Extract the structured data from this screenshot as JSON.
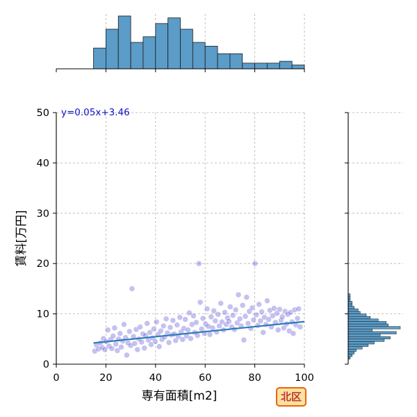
{
  "colors": {
    "hist_fill": "#5b9cc8",
    "hist_edge": "#1a1a1a",
    "scatter_point": "#4b3fd0",
    "regression_line": "#2b7bb9",
    "equation_text": "#1010c8",
    "grid": "#b0b0b0",
    "badge_border": "#e8640a",
    "badge_fill": "#fde2a4",
    "badge_text": "#c0392b"
  },
  "badge": {
    "label": "北区"
  },
  "chart_data": [
    {
      "type": "scatter",
      "xlabel": "専有面積[m2]",
      "ylabel": "賃料[万円]",
      "xlim": [
        0,
        100
      ],
      "ylim": [
        0,
        50
      ],
      "xticks": [
        0,
        20,
        40,
        60,
        80,
        100
      ],
      "yticks": [
        0,
        10,
        20,
        30,
        40,
        50
      ],
      "grid": true,
      "annotation": "y=0.05x+3.46",
      "regression": {
        "slope": 0.05,
        "intercept": 3.46,
        "x_range": [
          15,
          100
        ]
      },
      "points": [
        [
          15.5,
          2.6
        ],
        [
          16.2,
          3.8
        ],
        [
          17.0,
          3.0
        ],
        [
          17.8,
          4.2
        ],
        [
          18.5,
          3.3
        ],
        [
          19.0,
          5.1
        ],
        [
          19.6,
          2.9
        ],
        [
          20.1,
          4.5
        ],
        [
          20.8,
          6.8
        ],
        [
          21.3,
          3.6
        ],
        [
          21.9,
          4.9
        ],
        [
          22.4,
          3.1
        ],
        [
          22.9,
          5.6
        ],
        [
          23.5,
          7.2
        ],
        [
          24.0,
          4.0
        ],
        [
          24.6,
          2.7
        ],
        [
          25.1,
          5.0
        ],
        [
          25.7,
          6.1
        ],
        [
          26.2,
          3.4
        ],
        [
          26.8,
          4.6
        ],
        [
          27.3,
          7.9
        ],
        [
          27.9,
          5.3
        ],
        [
          28.4,
          1.8
        ],
        [
          28.9,
          4.2
        ],
        [
          29.5,
          6.5
        ],
        [
          30.0,
          3.7
        ],
        [
          30.5,
          15.0
        ],
        [
          31.1,
          5.5
        ],
        [
          31.6,
          4.1
        ],
        [
          32.2,
          6.9
        ],
        [
          32.7,
          2.9
        ],
        [
          33.3,
          5.0
        ],
        [
          33.8,
          7.4
        ],
        [
          34.4,
          4.4
        ],
        [
          34.9,
          6.0
        ],
        [
          35.5,
          3.2
        ],
        [
          36.0,
          5.7
        ],
        [
          36.6,
          8.1
        ],
        [
          37.1,
          4.8
        ],
        [
          37.7,
          6.3
        ],
        [
          38.2,
          3.9
        ],
        [
          38.8,
          5.2
        ],
        [
          39.3,
          7.0
        ],
        [
          39.9,
          4.5
        ],
        [
          40.4,
          8.4
        ],
        [
          41.0,
          5.9
        ],
        [
          41.5,
          3.5
        ],
        [
          42.1,
          6.6
        ],
        [
          42.6,
          4.9
        ],
        [
          43.2,
          7.6
        ],
        [
          43.7,
          5.4
        ],
        [
          44.3,
          9.0
        ],
        [
          44.8,
          6.2
        ],
        [
          45.4,
          4.3
        ],
        [
          45.9,
          7.3
        ],
        [
          46.5,
          5.8
        ],
        [
          47.0,
          8.7
        ],
        [
          47.6,
          6.0
        ],
        [
          48.1,
          4.7
        ],
        [
          48.7,
          7.8
        ],
        [
          49.2,
          5.5
        ],
        [
          49.8,
          9.3
        ],
        [
          50.3,
          6.4
        ],
        [
          50.9,
          4.9
        ],
        [
          51.4,
          7.1
        ],
        [
          52.0,
          8.9
        ],
        [
          52.5,
          5.6
        ],
        [
          53.1,
          6.8
        ],
        [
          53.6,
          10.2
        ],
        [
          54.2,
          5.1
        ],
        [
          54.7,
          7.9
        ],
        [
          55.3,
          9.6
        ],
        [
          55.8,
          6.3
        ],
        [
          56.4,
          8.3
        ],
        [
          56.9,
          5.7
        ],
        [
          57.5,
          20.0
        ],
        [
          58.0,
          12.3
        ],
        [
          58.6,
          7.0
        ],
        [
          59.1,
          9.1
        ],
        [
          59.7,
          6.1
        ],
        [
          60.2,
          8.0
        ],
        [
          60.8,
          11.0
        ],
        [
          61.3,
          7.5
        ],
        [
          61.9,
          5.9
        ],
        [
          62.4,
          9.4
        ],
        [
          63.0,
          7.2
        ],
        [
          63.5,
          10.6
        ],
        [
          64.1,
          8.6
        ],
        [
          64.6,
          6.4
        ],
        [
          65.2,
          9.9
        ],
        [
          65.7,
          7.6
        ],
        [
          66.3,
          12.1
        ],
        [
          66.8,
          8.4
        ],
        [
          67.4,
          6.8
        ],
        [
          67.9,
          10.3
        ],
        [
          68.5,
          7.9
        ],
        [
          69.0,
          9.2
        ],
        [
          69.6,
          8.5
        ],
        [
          70.1,
          11.4
        ],
        [
          70.7,
          7.4
        ],
        [
          71.2,
          9.7
        ],
        [
          71.8,
          6.9
        ],
        [
          72.3,
          10.8
        ],
        [
          72.9,
          8.2
        ],
        [
          73.4,
          13.8
        ],
        [
          74.0,
          9.0
        ],
        [
          74.5,
          7.6
        ],
        [
          75.1,
          11.7
        ],
        [
          75.6,
          4.8
        ],
        [
          76.2,
          9.5
        ],
        [
          76.7,
          13.3
        ],
        [
          77.3,
          8.1
        ],
        [
          77.8,
          10.5
        ],
        [
          78.4,
          7.1
        ],
        [
          79.0,
          11.2
        ],
        [
          79.5,
          8.8
        ],
        [
          80.1,
          20.0
        ],
        [
          80.6,
          9.8
        ],
        [
          81.2,
          7.7
        ],
        [
          81.7,
          11.9
        ],
        [
          82.3,
          8.6
        ],
        [
          82.8,
          10.4
        ],
        [
          83.4,
          6.3
        ],
        [
          83.9,
          9.3
        ],
        [
          84.5,
          7.9
        ],
        [
          85.0,
          12.6
        ],
        [
          85.6,
          8.9
        ],
        [
          86.1,
          10.7
        ],
        [
          86.7,
          7.4
        ],
        [
          87.2,
          9.6
        ],
        [
          87.8,
          11.1
        ],
        [
          88.3,
          8.3
        ],
        [
          88.9,
          10.1
        ],
        [
          89.4,
          6.8
        ],
        [
          90.0,
          10.9
        ],
        [
          90.6,
          8.7
        ],
        [
          91.1,
          9.4
        ],
        [
          91.7,
          7.2
        ],
        [
          92.2,
          10.5
        ],
        [
          92.8,
          8.0
        ],
        [
          93.3,
          9.9
        ],
        [
          93.9,
          6.6
        ],
        [
          94.4,
          10.3
        ],
        [
          95.0,
          8.4
        ],
        [
          95.5,
          6.1
        ],
        [
          96.1,
          10.8
        ],
        [
          96.6,
          7.8
        ],
        [
          97.2,
          9.1
        ],
        [
          97.7,
          11.0
        ],
        [
          98.3,
          7.4
        ]
      ]
    },
    {
      "type": "histogram",
      "orientation": "vertical",
      "axis": "x",
      "bin_edges": [
        15,
        20,
        25,
        30,
        35,
        40,
        45,
        50,
        55,
        60,
        65,
        70,
        75,
        80,
        85,
        90,
        95,
        100
      ],
      "counts": [
        11,
        21,
        28,
        14,
        17,
        24,
        27,
        21,
        14,
        12,
        8,
        8,
        3,
        3,
        3,
        4,
        2
      ]
    },
    {
      "type": "histogram",
      "orientation": "horizontal",
      "axis": "y",
      "bin_edges": [
        1.0,
        1.5,
        2.0,
        2.5,
        3.0,
        3.5,
        4.0,
        4.5,
        5.0,
        5.5,
        6.0,
        6.5,
        7.0,
        7.5,
        8.0,
        8.5,
        9.0,
        9.5,
        10.0,
        10.5,
        11.0,
        11.5,
        12.0,
        12.5,
        13.0,
        13.5,
        14.0
      ],
      "counts": [
        1,
        2,
        3,
        4,
        7,
        10,
        13,
        18,
        21,
        16,
        24,
        12,
        26,
        20,
        19,
        15,
        11,
        9,
        6,
        5,
        3,
        2,
        2,
        1,
        1,
        1
      ]
    }
  ]
}
